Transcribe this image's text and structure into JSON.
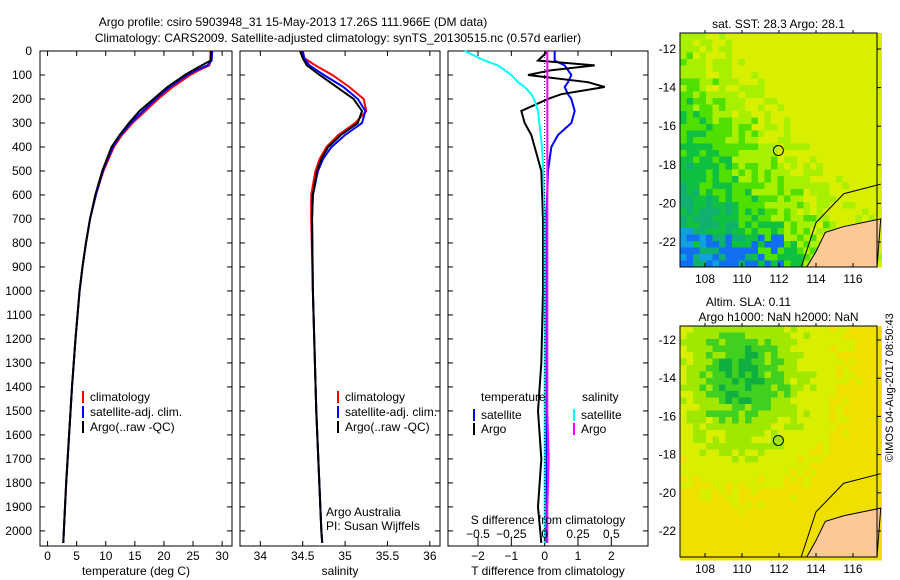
{
  "title": {
    "line1": "Argo profile: csiro 5903948_31 15-May-2013 17.26S 111.966E (DM data)",
    "line2": "Climatology: CARS2009. Satellite-adjusted climatology: synTS_20130515.nc (0.57d earlier)"
  },
  "colors": {
    "climatology": "#ff0000",
    "satellite": "#0000ff",
    "argo": "#000000",
    "sal_sat": "#00ffff",
    "sal_argo": "#ff00ff",
    "land": "#fcc896"
  },
  "chart_data": [
    {
      "type": "line",
      "name": "temperature",
      "xlabel": "temperature (deg C)",
      "ylabel": "",
      "xlim": [
        -1.3,
        31.7
      ],
      "ylim": [
        2063,
        0
      ],
      "xticks": [
        "0",
        "5",
        "10",
        "15",
        "20",
        "25",
        "30"
      ],
      "yticks": [
        "0",
        "100",
        "200",
        "300",
        "400",
        "500",
        "600",
        "700",
        "800",
        "900",
        "1000",
        "1100",
        "1200",
        "1300",
        "1400",
        "1500",
        "1600",
        "1700",
        "1800",
        "1900",
        "2000"
      ],
      "legend": [
        "climatology",
        "satellite-adj. clim.",
        "Argo(..raw -QC)"
      ],
      "depth": [
        0,
        40,
        60,
        80,
        100,
        150,
        200,
        250,
        300,
        350,
        400,
        500,
        600,
        700,
        800,
        900,
        1000,
        1200,
        1400,
        1600,
        1800,
        2000,
        2050
      ],
      "series": [
        {
          "name": "climatology",
          "values": [
            28,
            28,
            27.8,
            26,
            24.5,
            21.5,
            19,
            16.8,
            14.6,
            12.8,
            11.4,
            9.6,
            8.3,
            7.3,
            6.6,
            6,
            5.5,
            4.8,
            4.2,
            3.7,
            3.2,
            2.8,
            2.7
          ]
        },
        {
          "name": "satellite-adj. clim.",
          "values": [
            28.3,
            28.2,
            27.5,
            25.5,
            24,
            21,
            18.6,
            16.4,
            14.3,
            12.6,
            11.2,
            9.5,
            8.3,
            7.3,
            6.6,
            6,
            5.5,
            4.8,
            4.2,
            3.7,
            3.2,
            2.8,
            2.7
          ]
        },
        {
          "name": "Argo(..raw -QC)",
          "values": [
            28.1,
            28,
            26.5,
            25,
            23.6,
            20.6,
            18.2,
            15.8,
            14,
            12.4,
            11,
            9.4,
            8.2,
            7.3,
            6.6,
            6,
            5.5,
            4.8,
            4.2,
            3.7,
            3.2,
            2.8,
            2.7
          ]
        }
      ]
    },
    {
      "type": "line",
      "name": "salinity",
      "xlabel": "salinity",
      "xlim": [
        33.76,
        36.12
      ],
      "ylim": [
        2063,
        0
      ],
      "xticks": [
        "34",
        "34.5",
        "35",
        "35.5",
        "36"
      ],
      "legend": [
        "climatology",
        "satellite-adj. clim.",
        "Argo(..raw -QC)"
      ],
      "annotation": [
        "Argo Australia",
        "PI: Susan Wijffels"
      ],
      "depth": [
        0,
        30,
        60,
        100,
        150,
        200,
        250,
        300,
        350,
        400,
        450,
        500,
        600,
        700,
        1000,
        1500,
        2000,
        2050
      ],
      "series": [
        {
          "name": "climatology",
          "values": [
            34.48,
            34.52,
            34.65,
            34.85,
            35.05,
            35.22,
            35.25,
            35.12,
            34.92,
            34.78,
            34.7,
            34.65,
            34.6,
            34.6,
            34.62,
            34.66,
            34.72,
            34.73
          ]
        },
        {
          "name": "satellite-adj. clim.",
          "values": [
            34.5,
            34.52,
            34.58,
            34.75,
            34.98,
            35.15,
            35.24,
            35.2,
            35.0,
            34.84,
            34.74,
            34.68,
            34.62,
            34.61,
            34.62,
            34.66,
            34.72,
            34.73
          ]
        },
        {
          "name": "Argo(..raw -QC)",
          "values": [
            34.47,
            34.5,
            34.55,
            34.7,
            34.9,
            35.1,
            35.2,
            35.15,
            34.95,
            34.8,
            34.72,
            34.67,
            34.62,
            34.61,
            34.62,
            34.66,
            34.72,
            34.73
          ]
        }
      ]
    },
    {
      "type": "line",
      "name": "difference",
      "xlabel": "T difference from climatology",
      "x2label": "S difference from climatology",
      "xlim": [
        -2.9,
        3.1
      ],
      "ylim": [
        2063,
        0
      ],
      "xticks": [
        "-2",
        "-1",
        "0",
        "1",
        "2"
      ],
      "x2ticks": [
        "-0.5",
        "-0.25",
        "0",
        "0.25",
        "0.5"
      ],
      "legend_titles": [
        "temperature",
        "salinity"
      ],
      "legend": [
        "satellite",
        "Argo",
        "satellite",
        "Argo"
      ],
      "depth": [
        0,
        40,
        60,
        80,
        100,
        130,
        150,
        180,
        200,
        250,
        300,
        350,
        400,
        500,
        700,
        1000,
        1300,
        1500,
        1700,
        1900,
        2050
      ],
      "series": [
        {
          "name": "T satellite",
          "values": [
            0.3,
            0.3,
            0.6,
            0.7,
            0.8,
            0.7,
            0.6,
            0.7,
            0.8,
            0.9,
            0.8,
            0.4,
            0.2,
            0.1,
            0.05,
            0.05,
            0.05,
            0.05,
            0.05,
            0.05,
            0.05
          ]
        },
        {
          "name": "T Argo",
          "values": [
            0.1,
            -0.2,
            1.5,
            0.2,
            -0.5,
            1.3,
            1.8,
            0.5,
            0.1,
            -0.7,
            -0.6,
            -0.4,
            -0.3,
            -0.1,
            -0.05,
            -0.05,
            -0.1,
            -0.2,
            -0.1,
            -0.2,
            -0.1
          ]
        },
        {
          "name": "S satellite",
          "values": [
            -0.6,
            -0.45,
            -0.35,
            -0.3,
            -0.25,
            -0.2,
            -0.15,
            -0.1,
            -0.08,
            -0.05,
            -0.04,
            -0.03,
            -0.02,
            -0.01,
            0,
            0,
            0,
            0,
            0,
            0,
            0
          ]
        },
        {
          "name": "S Argo",
          "values": [
            0.02,
            0.02,
            0.02,
            0.02,
            0.02,
            0.02,
            0.02,
            0.02,
            0.02,
            0.02,
            0.02,
            0.02,
            0.02,
            0.02,
            0.02,
            0.02,
            0.02,
            0.02,
            0.03,
            0.02,
            0.02
          ]
        }
      ]
    }
  ],
  "maps": [
    {
      "title": [
        "sat. SST: 28.3 Argo: 28.1"
      ],
      "xticks": [
        "108",
        "110",
        "112",
        "114",
        "116"
      ],
      "yticks": [
        "-12",
        "-14",
        "-16",
        "-18",
        "-20",
        "-22"
      ],
      "lon": 111.966,
      "lat": -17.26
    },
    {
      "title": [
        "Altim. SLA: 0.11",
        "Argo h1000: NaN h2000: NaN"
      ],
      "xticks": [
        "108",
        "110",
        "112",
        "114",
        "116"
      ],
      "yticks": [
        "-12",
        "-14",
        "-16",
        "-18",
        "-20",
        "-22"
      ],
      "lon": 111.966,
      "lat": -17.26
    }
  ],
  "timestamp": "©IMOS 04-Aug-2017 08:50:43"
}
